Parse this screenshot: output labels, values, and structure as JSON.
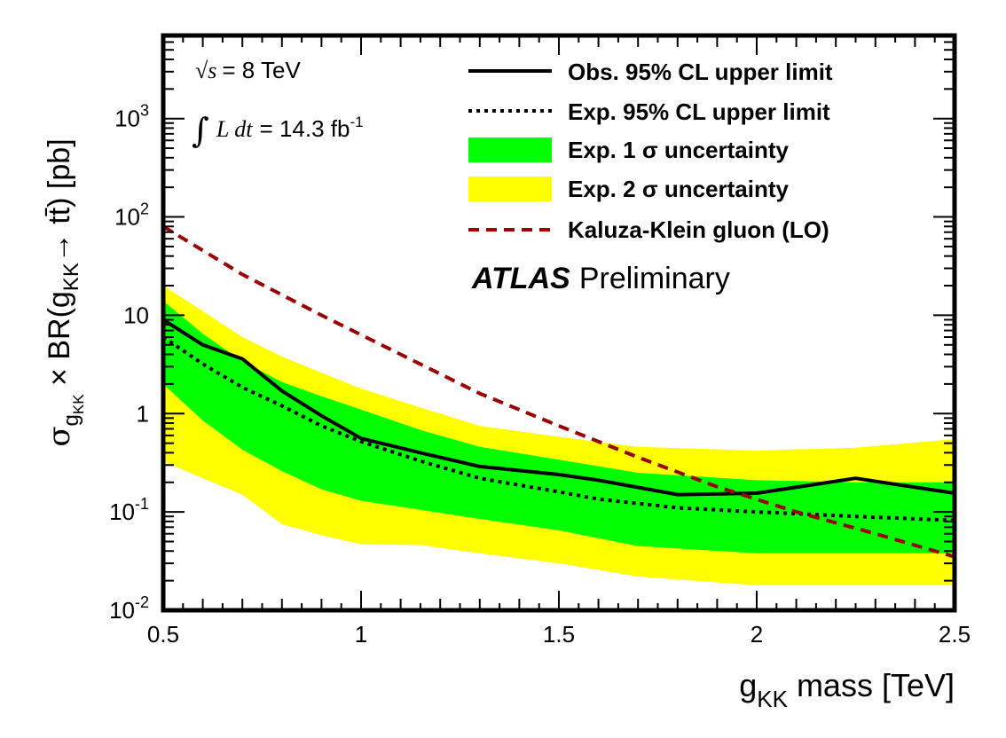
{
  "chart_data": {
    "type": "line",
    "y_scale": "log",
    "xlim": [
      0.5,
      2.5
    ],
    "ylim": [
      0.01,
      7000
    ],
    "x_ticks": [
      {
        "value": 0.5,
        "label": "0.5"
      },
      {
        "value": 1,
        "label": "1"
      },
      {
        "value": 1.5,
        "label": "1.5"
      },
      {
        "value": 2,
        "label": "2"
      },
      {
        "value": 2.5,
        "label": "2.5"
      }
    ],
    "y_ticks": [
      {
        "value": 0.01,
        "base": "10",
        "exp": "-2"
      },
      {
        "value": 0.1,
        "base": "10",
        "exp": "-1"
      },
      {
        "value": 1,
        "base": "1",
        "exp": ""
      },
      {
        "value": 10,
        "base": "10",
        "exp": ""
      },
      {
        "value": 100,
        "base": "10",
        "exp": "2"
      },
      {
        "value": 1000,
        "base": "10",
        "exp": "3"
      }
    ],
    "xlabel": {
      "main": "g",
      "sub": "KK",
      "rest": " mass [TeV]"
    },
    "ylabel": {
      "sigma": "σ",
      "sub": "g",
      "subsub": "KK",
      "times": " × BR(g",
      "sub2": "KK",
      "arrow": "→ tt̄) [pb]"
    },
    "band_2sigma": {
      "name": "Exp. 2 σ uncertainty",
      "color": "#ffff00",
      "x": [
        0.5,
        0.6,
        0.7,
        0.8,
        0.9,
        1.0,
        1.15,
        1.3,
        1.5,
        1.7,
        2.0,
        2.25,
        2.5
      ],
      "low": [
        0.33,
        0.22,
        0.15,
        0.075,
        0.058,
        0.047,
        0.046,
        0.038,
        0.03,
        0.022,
        0.018,
        0.018,
        0.018
      ],
      "high": [
        20,
        11,
        6,
        3.8,
        2.6,
        1.8,
        1.15,
        0.75,
        0.58,
        0.46,
        0.42,
        0.45,
        0.55
      ]
    },
    "band_1sigma": {
      "name": "Exp. 1 σ uncertainty",
      "color": "#00ff00",
      "x": [
        0.5,
        0.6,
        0.7,
        0.8,
        0.9,
        1.0,
        1.15,
        1.3,
        1.5,
        1.7,
        2.0,
        2.25,
        2.5
      ],
      "low": [
        2.0,
        0.85,
        0.43,
        0.26,
        0.17,
        0.13,
        0.105,
        0.085,
        0.065,
        0.045,
        0.038,
        0.038,
        0.038
      ],
      "high": [
        14,
        6.5,
        3.4,
        2.1,
        1.5,
        1.1,
        0.68,
        0.46,
        0.34,
        0.25,
        0.21,
        0.2,
        0.2
      ]
    },
    "series": [
      {
        "name": "Obs. 95% CL upper limit",
        "style": "solid",
        "color": "#000000",
        "x": [
          0.5,
          0.6,
          0.7,
          0.8,
          0.9,
          1.0,
          1.15,
          1.3,
          1.5,
          1.6,
          1.8,
          2.0,
          2.25,
          2.5
        ],
        "y": [
          9.0,
          5.0,
          3.6,
          1.7,
          0.95,
          0.56,
          0.4,
          0.29,
          0.24,
          0.21,
          0.15,
          0.155,
          0.22,
          0.155
        ]
      },
      {
        "name": "Exp. 95% CL upper limit",
        "style": "dotted",
        "color": "#000000",
        "x": [
          0.5,
          0.6,
          0.7,
          0.8,
          0.9,
          1.0,
          1.15,
          1.3,
          1.5,
          1.6,
          1.8,
          2.0,
          2.25,
          2.5
        ],
        "y": [
          6.0,
          3.2,
          1.85,
          1.2,
          0.75,
          0.52,
          0.33,
          0.22,
          0.16,
          0.135,
          0.11,
          0.1,
          0.09,
          0.082
        ]
      },
      {
        "name": "Kaluza-Klein gluon (LO)",
        "style": "dashed",
        "color": "#990000",
        "x": [
          0.5,
          0.7,
          0.9,
          1.1,
          1.3,
          1.5,
          1.7,
          1.9,
          2.1,
          2.3,
          2.5
        ],
        "y": [
          80,
          26,
          10,
          4.0,
          1.6,
          0.75,
          0.36,
          0.18,
          0.1,
          0.06,
          0.035
        ]
      }
    ],
    "annotations": {
      "sqrt_s": "√s",
      "energy": "= 8 TeV",
      "integral": "∫",
      "lumi_expr": "L dt",
      "lumi_value": "= 14.3 fb",
      "lumi_exp": "-1",
      "experiment": "ATLAS",
      "status": "Preliminary"
    },
    "legend_position": "top-right"
  }
}
